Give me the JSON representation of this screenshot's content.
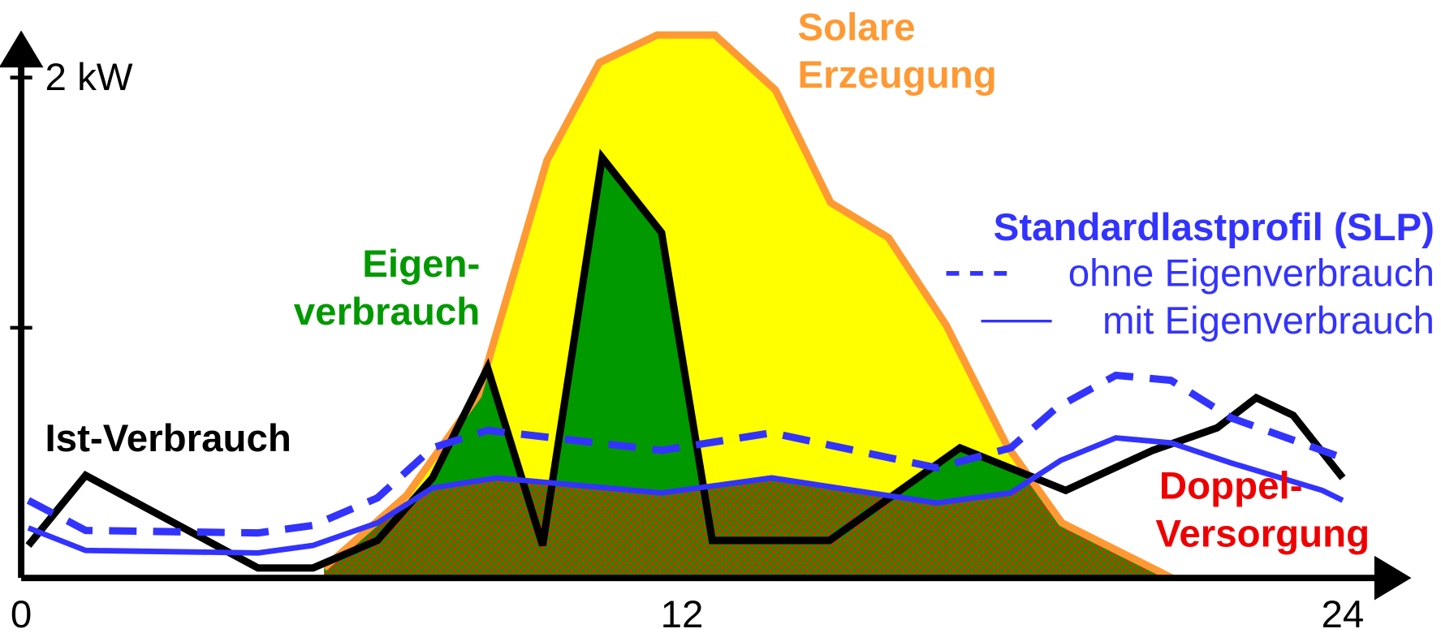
{
  "chart_data": {
    "type": "line",
    "xlim": [
      0,
      25
    ],
    "ylim": [
      0,
      2.2
    ],
    "xticks": [
      0,
      12,
      24
    ],
    "yticks": [
      {
        "value": 1,
        "label": null
      },
      {
        "value": 2,
        "label": "2 kW"
      }
    ],
    "series": [
      {
        "role": "solar",
        "color": "#ff9933",
        "fill": "#ffff00",
        "x": [
          5.5,
          7,
          8.3,
          9.55,
          10.5,
          11.55,
          12.6,
          13.7,
          14.7,
          15.75,
          16.8,
          17.9,
          18.9,
          20.9
        ],
        "values": [
          0.04,
          0.33,
          0.73,
          1.67,
          2.06,
          2.17,
          2.17,
          1.95,
          1.5,
          1.36,
          1.01,
          0.53,
          0.22,
          0
        ]
      },
      {
        "role": "ist",
        "color": "#000000",
        "fill": "#009900",
        "x": [
          0.13,
          1.17,
          4.3,
          5.3,
          6.47,
          7.47,
          8.47,
          9.47,
          10.55,
          11.63,
          12.55,
          14.68,
          17.05,
          18.97,
          20.55,
          21.72,
          22.43,
          23.1,
          24
        ],
        "values": [
          0.13,
          0.41,
          0.04,
          0.04,
          0.15,
          0.4,
          0.84,
          0.13,
          1.68,
          1.38,
          0.15,
          0.15,
          0.52,
          0.35,
          0.51,
          0.6,
          0.72,
          0.65,
          0.4
        ]
      },
      {
        "role": "slp",
        "name": "ohne Eigenverbrauch",
        "color": "#3333ff",
        "dashed": true,
        "x": [
          0.13,
          1.17,
          4.3,
          5.3,
          6.47,
          7.47,
          8.47,
          11.63,
          13.63,
          16.63,
          17.97,
          18.8,
          19.88,
          20.88,
          21.97,
          24
        ],
        "values": [
          0.31,
          0.19,
          0.18,
          0.21,
          0.32,
          0.52,
          0.59,
          0.51,
          0.58,
          0.44,
          0.52,
          0.68,
          0.81,
          0.79,
          0.64,
          0.48
        ]
      },
      {
        "role": "slp",
        "name": "mit Eigenverbrauch",
        "color": "#3333ff",
        "dashed": false,
        "x": [
          0.13,
          1.17,
          4.3,
          5.3,
          6.47,
          7.47,
          8.63,
          11.63,
          13.63,
          16.63,
          17.97,
          18.88,
          19.88,
          20.88,
          21.97,
          23.63,
          24
        ],
        "values": [
          0.2,
          0.11,
          0.1,
          0.13,
          0.22,
          0.36,
          0.4,
          0.34,
          0.4,
          0.3,
          0.34,
          0.47,
          0.56,
          0.54,
          0.46,
          0.35,
          0.31
        ]
      }
    ],
    "legend_title": "Standardlastprofil (SLP)",
    "annotations": [
      {
        "lines": [
          "Solare",
          "Erzeugung"
        ],
        "color": "#ff9933"
      },
      {
        "lines": [
          "Eigen-",
          "verbrauch"
        ],
        "color": "#009900"
      },
      {
        "lines": [
          "Ist-Verbrauch"
        ],
        "color": "#000000"
      },
      {
        "lines": [
          "Doppel-",
          "Versorgung"
        ],
        "color": "#ee0000"
      }
    ]
  }
}
